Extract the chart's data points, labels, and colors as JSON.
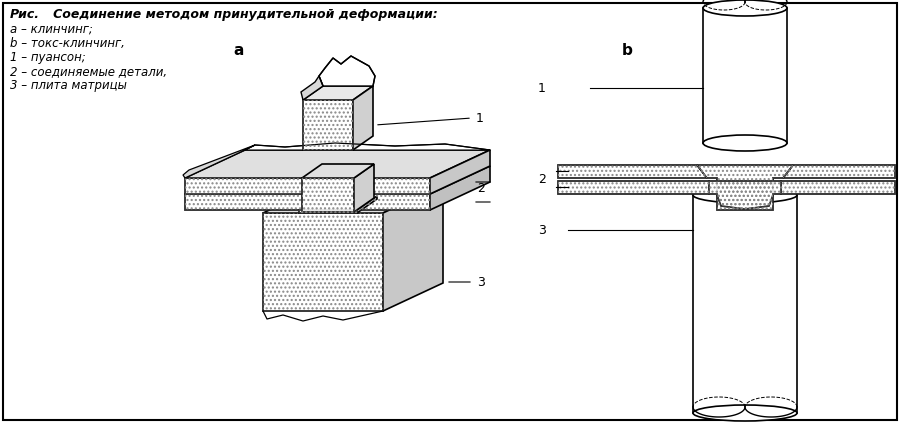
{
  "title_bold": "Рис.",
  "title_italic": "   Соединение методом принудительной деформации:",
  "legend_lines": [
    "a – клинчинг;",
    "b – токс-клинчинг,",
    "1 – пуансон;",
    "2 – соединяемые детали,",
    "3 – плита матрицы"
  ],
  "label_a": "a",
  "label_b": "b",
  "label_1": "1",
  "label_2": "2",
  "label_3": "3",
  "bg_color": "#ffffff",
  "hatch_gray": "#bbbbbb",
  "fill_white": "#ffffff",
  "fill_light": "#eeeeee",
  "fill_gray": "#cccccc",
  "lw": 1.2
}
